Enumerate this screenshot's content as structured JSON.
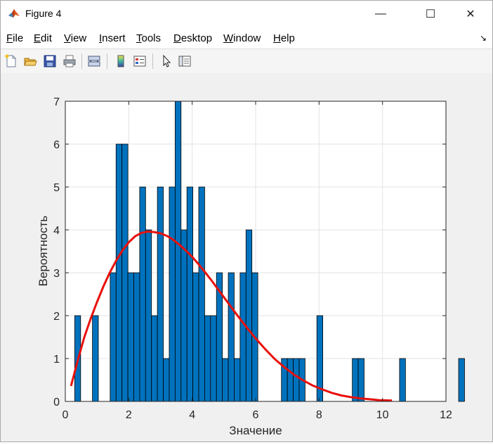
{
  "window": {
    "title": "Figure 4",
    "minimize_glyph": "—",
    "maximize_glyph": "☐",
    "close_glyph": "✕",
    "dock_glyph": "↘"
  },
  "menu": {
    "items": [
      "File",
      "Edit",
      "View",
      "Insert",
      "Tools",
      "Desktop",
      "Window",
      "Help"
    ]
  },
  "toolbar": {
    "buttons": [
      {
        "name": "new-figure-icon"
      },
      {
        "name": "open-file-icon"
      },
      {
        "name": "save-icon"
      },
      {
        "name": "print-icon"
      },
      {
        "name": "link-plot-icon"
      },
      {
        "name": "insert-colorbar-icon"
      },
      {
        "name": "insert-legend-icon"
      },
      {
        "name": "edit-plot-pointer-icon"
      },
      {
        "name": "property-inspector-icon"
      }
    ]
  },
  "colors": {
    "bar_fill": "#0072BD",
    "bar_edge": "#000000",
    "curve": "#E8100D",
    "grid": "#e3e3e3",
    "axes_bg": "#ffffff",
    "figure_bg": "#f0f0f0"
  },
  "chart_data": {
    "type": "bar",
    "title": "",
    "xlabel": "Значение",
    "ylabel": "Вероятность",
    "xlim": [
      0,
      12
    ],
    "ylim": [
      0,
      7
    ],
    "xticks": [
      0,
      2,
      4,
      6,
      8,
      10,
      12
    ],
    "yticks": [
      0,
      1,
      2,
      3,
      4,
      5,
      6,
      7
    ],
    "grid": true,
    "histogram": {
      "bin_width": 0.1862,
      "first_bin_start": 0.2966,
      "counts": [
        2,
        0,
        0,
        2,
        0,
        0,
        3,
        6,
        6,
        3,
        3,
        5,
        4,
        2,
        5,
        1,
        5,
        7,
        4,
        5,
        3,
        5,
        2,
        2,
        3,
        1,
        3,
        1,
        3,
        4,
        3,
        0,
        0,
        0,
        0,
        1,
        1,
        1,
        1,
        0,
        0,
        2,
        0,
        0,
        0,
        0,
        0,
        1,
        1,
        0,
        0,
        0,
        0,
        0,
        0,
        1,
        0,
        0,
        0,
        0,
        0,
        0,
        0,
        0,
        0,
        1
      ]
    },
    "curve": {
      "name": "",
      "x": [
        0.18,
        0.4,
        0.6,
        0.8,
        1.0,
        1.2,
        1.4,
        1.6,
        1.8,
        2.0,
        2.2,
        2.4,
        2.6,
        2.8,
        3.0,
        3.2,
        3.4,
        3.6,
        3.8,
        4.0,
        4.2,
        4.4,
        4.6,
        4.8,
        5.0,
        5.2,
        5.4,
        5.6,
        5.8,
        6.0,
        6.3,
        6.6,
        6.9,
        7.2,
        7.5,
        7.8,
        8.1,
        8.4,
        8.7,
        9.0,
        9.3,
        9.6,
        9.9,
        10.3
      ],
      "y": [
        0.36,
        0.98,
        1.5,
        1.93,
        2.32,
        2.68,
        3.0,
        3.28,
        3.52,
        3.71,
        3.85,
        3.93,
        3.96,
        3.95,
        3.92,
        3.86,
        3.77,
        3.65,
        3.52,
        3.37,
        3.2,
        3.02,
        2.83,
        2.63,
        2.43,
        2.23,
        2.03,
        1.84,
        1.65,
        1.47,
        1.22,
        0.99,
        0.8,
        0.63,
        0.49,
        0.37,
        0.28,
        0.2,
        0.14,
        0.1,
        0.07,
        0.05,
        0.03,
        0.02
      ]
    }
  }
}
